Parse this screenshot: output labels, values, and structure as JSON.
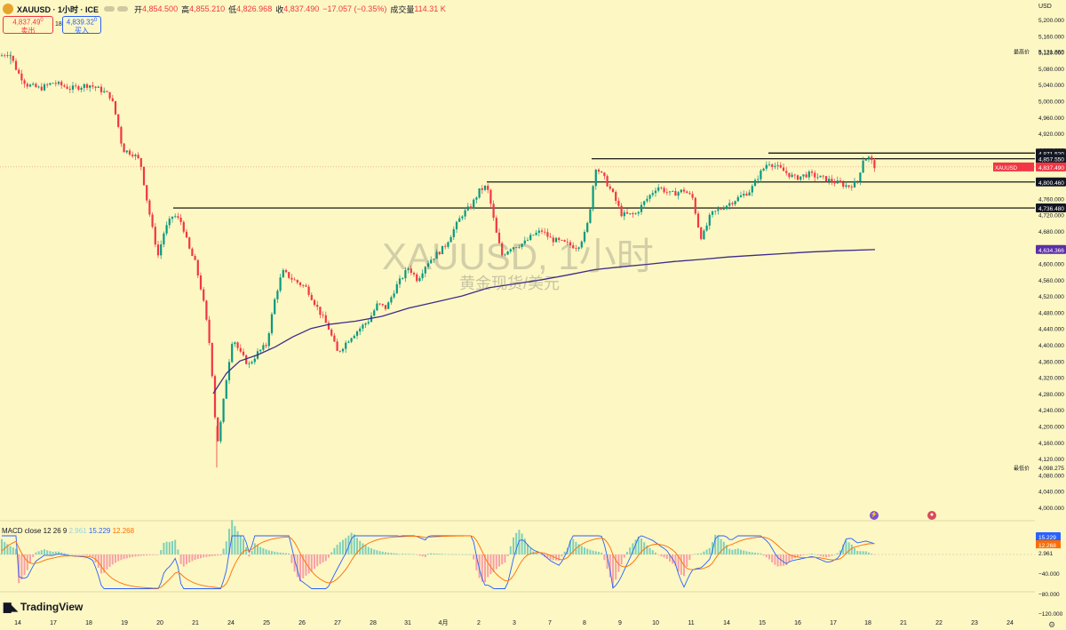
{
  "header": {
    "symbol": "XAUUSD · 1小时 · ICE",
    "open_label": "开",
    "open": "4,854.500",
    "high_label": "高",
    "high": "4,855.210",
    "low_label": "低",
    "low": "4,826.968",
    "close_label": "收",
    "close": "4,837.490",
    "change": "−17.057 (−0.35%)",
    "volume_label": "成交量",
    "volume": "114.31 K"
  },
  "trade": {
    "sell_price": "4,837.49",
    "sell_sup": "0",
    "sell_label": "卖出",
    "spread": "183.0",
    "buy_price": "4,839.32",
    "buy_sup": "0",
    "buy_label": "买入"
  },
  "currency": "USD",
  "watermark": {
    "title": "XAUUSD, 1小时",
    "subtitle": "黄金现货/美元"
  },
  "macd_header": {
    "label": "MACD close 12 26 9",
    "hist": "2.961",
    "macd": "15.229",
    "signal": "12.268"
  },
  "logo_text": "TradingView",
  "colors": {
    "background": "#fdf7c3",
    "up": "#089981",
    "down": "#f23645",
    "ma": "#3d2a8a",
    "macd": "#2962ff",
    "signal": "#ff6d00"
  },
  "chart_data": {
    "type": "candlestick",
    "y_ticks": [
      "5,200.000",
      "5,160.000",
      "5,120.000",
      "5,080.000",
      "5,040.000",
      "5,000.000",
      "4,960.000",
      "4,920.000",
      "4,880.000",
      "4,840.000",
      "4,800.000",
      "4,760.000",
      "4,720.000",
      "4,680.000",
      "4,640.000",
      "4,600.000",
      "4,560.000",
      "4,520.000",
      "4,480.000",
      "4,440.000",
      "4,400.000",
      "4,360.000",
      "4,320.000",
      "4,280.000",
      "4,240.000",
      "4,200.000",
      "4,160.000",
      "4,120.000",
      "4,080.000",
      "4,040.000",
      "4,000.000"
    ],
    "ylim": [
      4000,
      5200
    ],
    "x_ticks": [
      "14",
      "17",
      "18",
      "19",
      "20",
      "21",
      "24",
      "25",
      "26",
      "27",
      "28",
      "31",
      "4月",
      "2",
      "3",
      "7",
      "8",
      "9",
      "10",
      "11",
      "14",
      "15",
      "16",
      "17",
      "18",
      "21",
      "22",
      "23",
      "24"
    ],
    "price_labels": [
      {
        "label": "最高价",
        "value": "5,121.860",
        "style": "plain"
      },
      {
        "label": "",
        "value": "4,871.520",
        "style": "black"
      },
      {
        "label": "",
        "value": "4,857.550",
        "style": "black"
      },
      {
        "label": "XAUUSD",
        "value": "4,837.490",
        "style": "red"
      },
      {
        "label": "",
        "value": "4,800.460",
        "style": "black"
      },
      {
        "label": "",
        "value": "4,736.480",
        "style": "black"
      },
      {
        "label": "",
        "value": "4,634.366",
        "style": "purple"
      },
      {
        "label": "最低价",
        "value": "4,098.275",
        "style": "plain"
      }
    ],
    "horizontal_lines": [
      {
        "value": 4871.52,
        "from_x": "15"
      },
      {
        "value": 4857.55,
        "from_x": "8"
      },
      {
        "value": 4800.46,
        "from_x": "2"
      },
      {
        "value": 4736.48,
        "from_x": "20"
      }
    ],
    "price_path": [
      [
        0,
        5110
      ],
      [
        10,
        5120
      ],
      [
        20,
        5070
      ],
      [
        30,
        5040
      ],
      [
        45,
        5030
      ],
      [
        60,
        5045
      ],
      [
        80,
        5030
      ],
      [
        100,
        5040
      ],
      [
        115,
        5025
      ],
      [
        125,
        5010
      ],
      [
        132,
        4950
      ],
      [
        138,
        4880
      ],
      [
        150,
        4870
      ],
      [
        158,
        4850
      ],
      [
        165,
        4760
      ],
      [
        172,
        4680
      ],
      [
        178,
        4620
      ],
      [
        185,
        4680
      ],
      [
        195,
        4720
      ],
      [
        205,
        4700
      ],
      [
        212,
        4640
      ],
      [
        220,
        4600
      ],
      [
        228,
        4520
      ],
      [
        235,
        4420
      ],
      [
        240,
        4300
      ],
      [
        244,
        4150
      ],
      [
        248,
        4200
      ],
      [
        255,
        4320
      ],
      [
        262,
        4420
      ],
      [
        270,
        4380
      ],
      [
        280,
        4350
      ],
      [
        290,
        4380
      ],
      [
        300,
        4400
      ],
      [
        310,
        4520
      ],
      [
        318,
        4580
      ],
      [
        330,
        4560
      ],
      [
        345,
        4540
      ],
      [
        360,
        4480
      ],
      [
        370,
        4440
      ],
      [
        380,
        4380
      ],
      [
        395,
        4420
      ],
      [
        405,
        4440
      ],
      [
        415,
        4460
      ],
      [
        425,
        4500
      ],
      [
        435,
        4490
      ],
      [
        445,
        4540
      ],
      [
        460,
        4590
      ],
      [
        470,
        4560
      ],
      [
        480,
        4600
      ],
      [
        490,
        4620
      ],
      [
        500,
        4640
      ],
      [
        510,
        4680
      ],
      [
        520,
        4720
      ],
      [
        530,
        4740
      ],
      [
        540,
        4780
      ],
      [
        548,
        4790
      ],
      [
        553,
        4740
      ],
      [
        558,
        4680
      ],
      [
        565,
        4620
      ],
      [
        575,
        4640
      ],
      [
        590,
        4650
      ],
      [
        600,
        4670
      ],
      [
        610,
        4680
      ],
      [
        620,
        4660
      ],
      [
        635,
        4650
      ],
      [
        650,
        4640
      ],
      [
        660,
        4680
      ],
      [
        666,
        4760
      ],
      [
        670,
        4840
      ],
      [
        680,
        4810
      ],
      [
        690,
        4770
      ],
      [
        700,
        4720
      ],
      [
        715,
        4720
      ],
      [
        725,
        4750
      ],
      [
        740,
        4790
      ],
      [
        755,
        4770
      ],
      [
        770,
        4780
      ],
      [
        780,
        4760
      ],
      [
        785,
        4700
      ],
      [
        790,
        4660
      ],
      [
        800,
        4720
      ],
      [
        815,
        4740
      ],
      [
        830,
        4760
      ],
      [
        845,
        4780
      ],
      [
        855,
        4820
      ],
      [
        865,
        4850
      ],
      [
        880,
        4830
      ],
      [
        895,
        4810
      ],
      [
        910,
        4820
      ],
      [
        925,
        4810
      ],
      [
        940,
        4800
      ],
      [
        955,
        4790
      ],
      [
        965,
        4800
      ],
      [
        972,
        4860
      ],
      [
        978,
        4860
      ],
      [
        985,
        4838
      ]
    ],
    "ma_path": [
      [
        240,
        4280
      ],
      [
        255,
        4330
      ],
      [
        270,
        4360
      ],
      [
        290,
        4375
      ],
      [
        310,
        4395
      ],
      [
        330,
        4420
      ],
      [
        350,
        4440
      ],
      [
        370,
        4450
      ],
      [
        400,
        4458
      ],
      [
        430,
        4470
      ],
      [
        460,
        4490
      ],
      [
        490,
        4505
      ],
      [
        520,
        4520
      ],
      [
        550,
        4540
      ],
      [
        580,
        4550
      ],
      [
        610,
        4560
      ],
      [
        640,
        4572
      ],
      [
        670,
        4585
      ],
      [
        700,
        4592
      ],
      [
        730,
        4598
      ],
      [
        760,
        4605
      ],
      [
        790,
        4610
      ],
      [
        820,
        4616
      ],
      [
        850,
        4620
      ],
      [
        880,
        4624
      ],
      [
        910,
        4628
      ],
      [
        940,
        4631
      ],
      [
        985,
        4634
      ]
    ],
    "macd_axis": [
      "15.229",
      "12.268",
      "2.961",
      "−40.000",
      "−80.000",
      "−120.000"
    ]
  }
}
